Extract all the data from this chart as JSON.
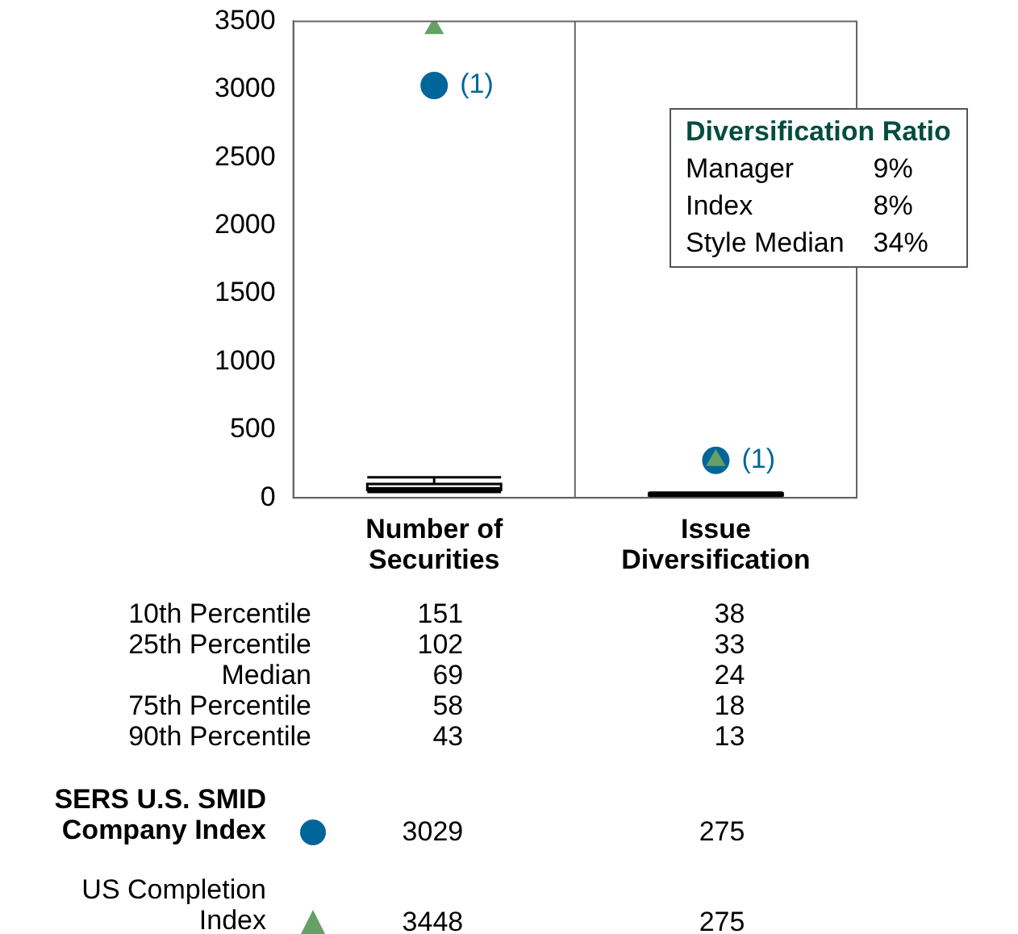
{
  "chart_data": {
    "type": "box",
    "categories": [
      "Number of Securities",
      "Issue Diversification"
    ],
    "boxes": [
      {
        "low": 43,
        "q1": 58,
        "median": 69,
        "q3": 102,
        "high": 151
      },
      {
        "low": 13,
        "q1": 18,
        "median": 24,
        "q3": 33,
        "high": 38
      }
    ],
    "series": [
      {
        "name": "SERS U.S. SMID Company Index",
        "type": "scatter",
        "marker": "circle",
        "color": "#006699",
        "x": [
          "Number of Securities",
          "Issue Diversification"
        ],
        "values": [
          3029,
          275
        ]
      },
      {
        "name": "US Completion Index",
        "type": "scatter",
        "marker": "triangle",
        "color": "#66a066",
        "x": [
          "Number of Securities",
          "Issue Diversification"
        ],
        "values": [
          3448,
          275
        ]
      }
    ],
    "ylim": [
      0,
      3500
    ],
    "yticks": [
      0,
      500,
      1000,
      1500,
      2000,
      2500,
      3000,
      3500
    ],
    "grid": false,
    "legend": "bottom",
    "data_labels": true,
    "annotations": [
      "Diversification Ratio",
      "Manager",
      "9%",
      "Index",
      "8%",
      "Style Median",
      "34%",
      "10th Percentile",
      "25th Percentile",
      "Median",
      "75th Percentile",
      "90th Percentile",
      {
        "text": "(1)",
        "x": "Number of Securities",
        "y": 3029
      },
      {
        "text": "(1)",
        "x": "Issue Diversification",
        "y": 275
      },
      "151",
      "38",
      "102",
      "33",
      "69",
      "24",
      "58",
      "18",
      "43",
      "13"
    ]
  }
}
